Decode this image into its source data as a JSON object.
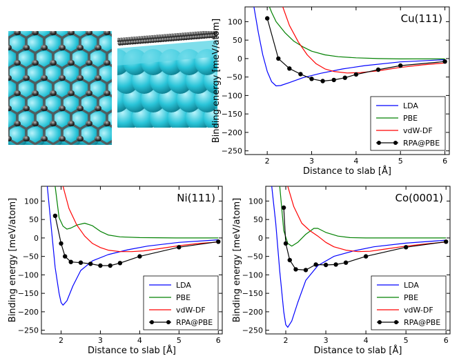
{
  "colors": {
    "LDA": "#0000ff",
    "PBE": "#008000",
    "vdW-DF": "#ff0000",
    "RPA@PBE": "#000000",
    "substrate": "#29c4d8",
    "carbon": "#3a3a3a"
  },
  "images": {
    "top_view_icon": "graphene-on-metal-top-view",
    "side_view_icon": "graphene-on-metal-side-view"
  },
  "chart_data": [
    {
      "type": "line",
      "panel_label": "Cu(111)",
      "xlabel": "Distance to slab [Å]",
      "ylabel": "Binding energy [meV/atom]",
      "xlim": [
        1.5,
        6.1
      ],
      "ylim": [
        -260,
        140
      ],
      "xticks": [
        "2",
        "3",
        "4",
        "5",
        "6"
      ],
      "yticks": [
        "100",
        "50",
        "0",
        "−50",
        "−100",
        "−150",
        "−200",
        "−250"
      ],
      "legend_position": "bottom-right",
      "grid": false,
      "series": [
        {
          "name": "LDA",
          "x": [
            1.7,
            1.8,
            1.9,
            2.0,
            2.1,
            2.2,
            2.3,
            2.5,
            2.8,
            3.2,
            3.7,
            4.2,
            5.0,
            6.0
          ],
          "y": [
            140,
            70,
            10,
            -35,
            -63,
            -74,
            -73,
            -65,
            -52,
            -40,
            -28,
            -19,
            -9,
            -3
          ]
        },
        {
          "name": "PBE",
          "x": [
            2.05,
            2.1,
            2.2,
            2.4,
            2.6,
            2.8,
            3.0,
            3.3,
            3.6,
            4.0,
            4.5,
            5.0,
            6.0
          ],
          "y": [
            140,
            125,
            100,
            70,
            47,
            32,
            20,
            10,
            5,
            2,
            0,
            -1,
            -1
          ]
        },
        {
          "name": "vdW-DF",
          "x": [
            2.35,
            2.5,
            2.7,
            2.9,
            3.1,
            3.3,
            3.5,
            3.8,
            4.1,
            4.5,
            5.0,
            5.5,
            6.0
          ],
          "y": [
            140,
            90,
            45,
            10,
            -14,
            -28,
            -35,
            -39,
            -38,
            -33,
            -24,
            -17,
            -12
          ]
        },
        {
          "name": "RPA@PBE",
          "x": [
            2.0,
            2.25,
            2.5,
            2.75,
            3.0,
            3.25,
            3.5,
            3.75,
            4.0,
            4.5,
            5.0,
            6.0
          ],
          "y": [
            109,
            0,
            -27,
            -42,
            -55,
            -61,
            -58,
            -52,
            -43,
            -30,
            -19,
            -8
          ]
        }
      ]
    },
    {
      "type": "line",
      "panel_label": "Ni(111)",
      "xlabel": "Distance to slab [Å]",
      "ylabel": "Binding energy [meV/atom]",
      "xlim": [
        1.5,
        6.1
      ],
      "ylim": [
        -260,
        140
      ],
      "xticks": [
        "2",
        "3",
        "4",
        "5",
        "6"
      ],
      "yticks": [
        "100",
        "50",
        "0",
        "−50",
        "−100",
        "−150",
        "−200",
        "−250"
      ],
      "legend_position": "bottom-right",
      "grid": false,
      "series": [
        {
          "name": "LDA",
          "x": [
            1.65,
            1.75,
            1.85,
            1.95,
            2.0,
            2.05,
            2.15,
            2.3,
            2.5,
            2.8,
            3.2,
            3.7,
            4.2,
            5.0,
            6.0
          ],
          "y": [
            140,
            30,
            -80,
            -150,
            -175,
            -182,
            -170,
            -130,
            -88,
            -62,
            -45,
            -32,
            -22,
            -12,
            -5
          ]
        },
        {
          "name": "PBE",
          "x": [
            1.85,
            1.95,
            2.05,
            2.15,
            2.25,
            2.4,
            2.6,
            2.8,
            3.0,
            3.2,
            3.5,
            4.0,
            5.0,
            6.0
          ],
          "y": [
            140,
            55,
            32,
            24,
            27,
            35,
            40,
            33,
            18,
            8,
            3,
            1,
            0,
            0
          ]
        },
        {
          "name": "vdW-DF",
          "x": [
            2.05,
            2.2,
            2.4,
            2.6,
            2.8,
            3.0,
            3.2,
            3.5,
            3.8,
            4.1,
            4.5,
            5.0,
            5.5,
            6.0
          ],
          "y": [
            140,
            80,
            35,
            5,
            -15,
            -26,
            -33,
            -37,
            -37,
            -35,
            -29,
            -21,
            -15,
            -11
          ]
        },
        {
          "name": "RPA@PBE",
          "x": [
            1.85,
            2.0,
            2.1,
            2.25,
            2.5,
            2.75,
            3.0,
            3.25,
            3.5,
            4.0,
            5.0,
            6.0
          ],
          "y": [
            60,
            -15,
            -50,
            -65,
            -67,
            -70,
            -75,
            -75,
            -68,
            -50,
            -25,
            -10
          ]
        }
      ]
    },
    {
      "type": "line",
      "panel_label": "Co(0001)",
      "xlabel": "Distance to slab [Å]",
      "ylabel": "Binding energy [meV/atom]",
      "xlim": [
        1.5,
        6.1
      ],
      "ylim": [
        -260,
        140
      ],
      "xticks": [
        "2",
        "3",
        "4",
        "5",
        "6"
      ],
      "yticks": [
        "100",
        "50",
        "0",
        "−50",
        "−100",
        "−150",
        "−200",
        "−250"
      ],
      "legend_position": "bottom-right",
      "grid": false,
      "series": [
        {
          "name": "LDA",
          "x": [
            1.65,
            1.75,
            1.85,
            1.95,
            2.0,
            2.05,
            2.15,
            2.3,
            2.5,
            2.8,
            3.2,
            3.7,
            4.2,
            5.0,
            6.0
          ],
          "y": [
            140,
            40,
            -90,
            -200,
            -235,
            -242,
            -225,
            -175,
            -115,
            -75,
            -50,
            -35,
            -24,
            -14,
            -6
          ]
        },
        {
          "name": "PBE",
          "x": [
            1.85,
            1.95,
            2.05,
            2.15,
            2.3,
            2.5,
            2.7,
            2.8,
            3.0,
            3.3,
            3.6,
            4.0,
            5.0,
            6.0
          ],
          "y": [
            140,
            20,
            -15,
            -22,
            -12,
            10,
            26,
            26,
            15,
            5,
            1,
            0,
            0,
            0
          ]
        },
        {
          "name": "vdW-DF",
          "x": [
            2.05,
            2.2,
            2.4,
            2.6,
            2.8,
            3.0,
            3.2,
            3.5,
            3.8,
            4.1,
            4.5,
            5.0,
            5.5,
            6.0
          ],
          "y": [
            140,
            85,
            40,
            20,
            5,
            -12,
            -24,
            -33,
            -37,
            -36,
            -30,
            -22,
            -16,
            -11
          ]
        },
        {
          "name": "RPA@PBE",
          "x": [
            1.95,
            2.0,
            2.1,
            2.25,
            2.5,
            2.75,
            3.0,
            3.25,
            3.5,
            4.0,
            5.0,
            6.0
          ],
          "y": [
            82,
            -15,
            -60,
            -85,
            -87,
            -72,
            -73,
            -72,
            -67,
            -50,
            -25,
            -10
          ]
        }
      ]
    }
  ]
}
